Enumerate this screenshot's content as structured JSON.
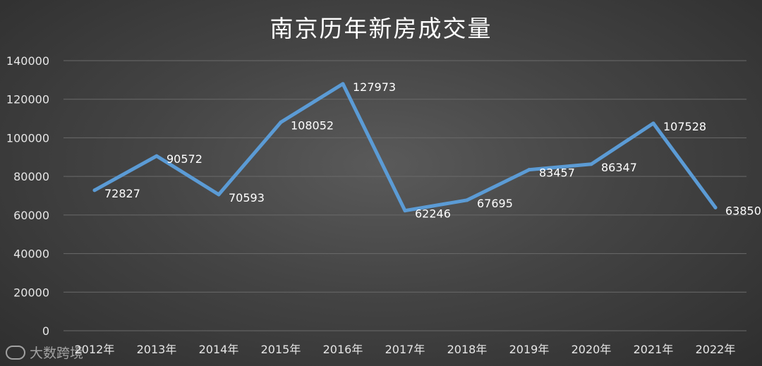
{
  "chart_data": {
    "type": "line",
    "title": "南京历年新房成交量",
    "categories": [
      "2012年",
      "2013年",
      "2014年",
      "2015年",
      "2016年",
      "2017年",
      "2018年",
      "2019年",
      "2020年",
      "2021年",
      "2022年"
    ],
    "series": [
      {
        "values": [
          72827,
          90572,
          70593,
          108052,
          127973,
          62246,
          67695,
          83457,
          86347,
          107528,
          63850
        ]
      }
    ],
    "ylim": [
      0,
      140000
    ],
    "yticks": [
      "0",
      "20000",
      "40000",
      "60000",
      "80000",
      "100000",
      "120000",
      "140000"
    ],
    "grid": true,
    "line_color": "#5b9bd5"
  },
  "watermark": {
    "text": "大数跨境"
  }
}
